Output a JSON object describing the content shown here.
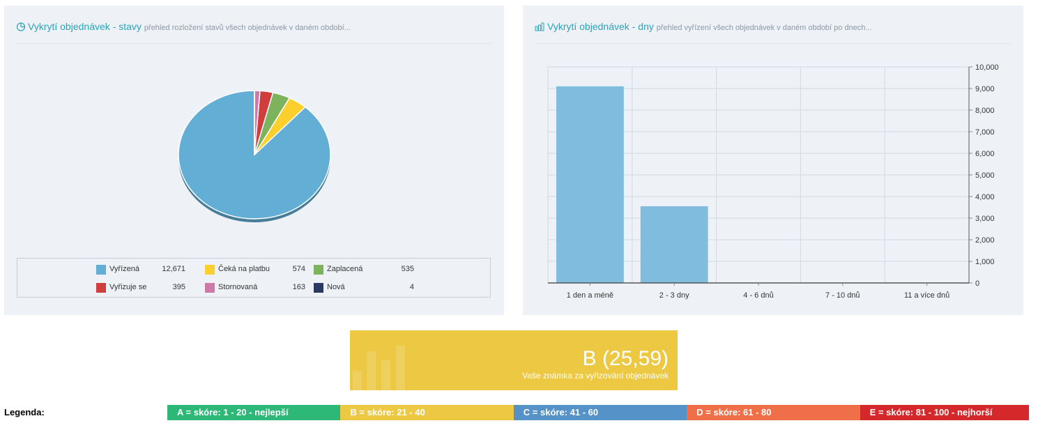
{
  "left_panel": {
    "title": "Vykrytí objednávek - stavy",
    "subtitle": "přehled rozložení stavů všech objednávek v daném období...",
    "icon": "pie-chart-icon"
  },
  "right_panel": {
    "title": "Vykrytí objednávek - dny",
    "subtitle": "přehled vyřízení všech objednávek v daném období po dnech...",
    "icon": "bar-chart-icon"
  },
  "chart_data": [
    {
      "type": "pie",
      "title": "",
      "slices": [
        {
          "label": "Vyřízená",
          "value": 12671,
          "value_text": "12,671",
          "color": "#62aed5"
        },
        {
          "label": "Čeká na platbu",
          "value": 574,
          "value_text": "574",
          "color": "#fbcf2c"
        },
        {
          "label": "Zaplacená",
          "value": 535,
          "value_text": "535",
          "color": "#7db35c"
        },
        {
          "label": "Vyřizuje se",
          "value": 395,
          "value_text": "395",
          "color": "#cf3e3c"
        },
        {
          "label": "Stornovaná",
          "value": 163,
          "value_text": "163",
          "color": "#cc7aa7"
        },
        {
          "label": "Nová",
          "value": 4,
          "value_text": "4",
          "color": "#2c3a63"
        }
      ],
      "legend": "bottom"
    },
    {
      "type": "bar",
      "title": "",
      "categories": [
        "1 den a méně",
        "2 - 3 dny",
        "4 - 6 dnů",
        "7 - 10 dnů",
        "11 a více dnů"
      ],
      "values": [
        9100,
        3550,
        0,
        0,
        0
      ],
      "ylim": [
        0,
        10000
      ],
      "yticks": [
        0,
        1000,
        2000,
        3000,
        4000,
        5000,
        6000,
        7000,
        8000,
        9000,
        10000
      ],
      "ytick_labels": [
        "0",
        "1,000",
        "2,000",
        "3,000",
        "4,000",
        "5,000",
        "6,000",
        "7,000",
        "8,000",
        "9,000",
        "10,000"
      ],
      "y_axis_side": "right",
      "grid": true,
      "color": "#7fbcdd"
    }
  ],
  "score": {
    "value": "B (25,59)",
    "label": "Vaše známka za vyřizování objednávek",
    "color": "#ecc843"
  },
  "grade_legend": {
    "title": "Legenda:",
    "grades": [
      {
        "label": "A = skóre: 1 - 20 - nejlepší",
        "color": "#2eb877"
      },
      {
        "label": "B = skóre: 21 - 40",
        "color": "#ecc843"
      },
      {
        "label": "C = skóre: 41 - 60",
        "color": "#5592c8"
      },
      {
        "label": "D = skóre: 61 - 80",
        "color": "#ef7048"
      },
      {
        "label": "E = skóre: 81 - 100 - nejhorší",
        "color": "#d4282a"
      }
    ]
  }
}
